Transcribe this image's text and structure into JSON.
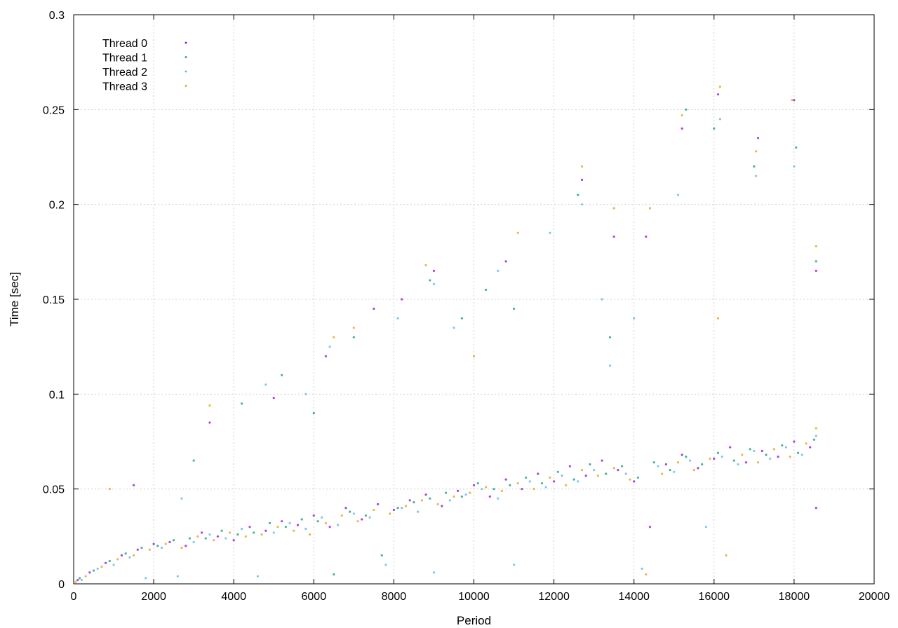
{
  "chart_data": {
    "type": "scatter",
    "title": "",
    "xlabel": "Period",
    "ylabel": "Time [sec]",
    "xlim": [
      0,
      20000
    ],
    "ylim": [
      0,
      0.3
    ],
    "x_ticks": [
      0,
      2000,
      4000,
      6000,
      8000,
      10000,
      12000,
      14000,
      16000,
      18000,
      20000
    ],
    "y_ticks": [
      0,
      0.05,
      0.1,
      0.15,
      0.2,
      0.25,
      0.3
    ],
    "x_tick_labels": [
      "0",
      "2000",
      "4000",
      "6000",
      "8000",
      "10000",
      "12000",
      "14000",
      "16000",
      "18000",
      "20000"
    ],
    "y_tick_labels": [
      "0",
      "0.05",
      "0.1",
      "0.15",
      "0.2",
      "0.25",
      "0.3"
    ],
    "grid": true,
    "legend_position": "top-left",
    "series": [
      {
        "name": "Thread 0",
        "color": "#9400d3",
        "points": [
          [
            100,
            0.002
          ],
          [
            400,
            0.006
          ],
          [
            800,
            0.011
          ],
          [
            1200,
            0.015
          ],
          [
            1600,
            0.018
          ],
          [
            2000,
            0.021
          ],
          [
            2400,
            0.022
          ],
          [
            2800,
            0.02
          ],
          [
            3200,
            0.027
          ],
          [
            3600,
            0.025
          ],
          [
            4000,
            0.023
          ],
          [
            4400,
            0.03
          ],
          [
            4800,
            0.028
          ],
          [
            5200,
            0.033
          ],
          [
            5600,
            0.031
          ],
          [
            6000,
            0.036
          ],
          [
            6400,
            0.03
          ],
          [
            6800,
            0.04
          ],
          [
            7200,
            0.034
          ],
          [
            7600,
            0.042
          ],
          [
            8000,
            0.039
          ],
          [
            8400,
            0.044
          ],
          [
            8800,
            0.047
          ],
          [
            9200,
            0.041
          ],
          [
            9600,
            0.049
          ],
          [
            10000,
            0.052
          ],
          [
            10400,
            0.046
          ],
          [
            10800,
            0.055
          ],
          [
            11200,
            0.05
          ],
          [
            11600,
            0.058
          ],
          [
            12000,
            0.054
          ],
          [
            12400,
            0.062
          ],
          [
            12800,
            0.057
          ],
          [
            13200,
            0.065
          ],
          [
            13600,
            0.06
          ],
          [
            14000,
            0.054
          ],
          [
            14400,
            0.03
          ],
          [
            14800,
            0.063
          ],
          [
            15200,
            0.068
          ],
          [
            15600,
            0.061
          ],
          [
            16000,
            0.066
          ],
          [
            16400,
            0.072
          ],
          [
            16800,
            0.064
          ],
          [
            17200,
            0.07
          ],
          [
            17600,
            0.067
          ],
          [
            18000,
            0.075
          ],
          [
            18400,
            0.072
          ],
          [
            18550,
            0.04
          ],
          [
            1500,
            0.052
          ],
          [
            5000,
            0.098
          ],
          [
            6300,
            0.12
          ],
          [
            8200,
            0.15
          ],
          [
            9000,
            0.165
          ],
          [
            10800,
            0.17
          ],
          [
            12700,
            0.213
          ],
          [
            13500,
            0.183
          ],
          [
            14300,
            0.183
          ],
          [
            15200,
            0.24
          ],
          [
            16100,
            0.258
          ],
          [
            17100,
            0.235
          ],
          [
            18000,
            0.255
          ],
          [
            18550,
            0.165
          ],
          [
            3400,
            0.085
          ],
          [
            7500,
            0.145
          ]
        ]
      },
      {
        "name": "Thread 1",
        "color": "#009e73",
        "points": [
          [
            150,
            0.003
          ],
          [
            500,
            0.007
          ],
          [
            900,
            0.012
          ],
          [
            1300,
            0.016
          ],
          [
            1700,
            0.019
          ],
          [
            2100,
            0.02
          ],
          [
            2500,
            0.023
          ],
          [
            2900,
            0.024
          ],
          [
            3300,
            0.024
          ],
          [
            3700,
            0.028
          ],
          [
            4100,
            0.026
          ],
          [
            4500,
            0.027
          ],
          [
            4900,
            0.032
          ],
          [
            5300,
            0.03
          ],
          [
            5700,
            0.034
          ],
          [
            6100,
            0.033
          ],
          [
            6500,
            0.005
          ],
          [
            6900,
            0.038
          ],
          [
            7300,
            0.036
          ],
          [
            7700,
            0.015
          ],
          [
            8100,
            0.04
          ],
          [
            8500,
            0.043
          ],
          [
            8900,
            0.045
          ],
          [
            9300,
            0.048
          ],
          [
            9700,
            0.046
          ],
          [
            10100,
            0.053
          ],
          [
            10500,
            0.05
          ],
          [
            10900,
            0.052
          ],
          [
            11300,
            0.056
          ],
          [
            11700,
            0.053
          ],
          [
            12100,
            0.059
          ],
          [
            12500,
            0.055
          ],
          [
            12900,
            0.063
          ],
          [
            13300,
            0.058
          ],
          [
            13700,
            0.062
          ],
          [
            14100,
            0.056
          ],
          [
            14500,
            0.064
          ],
          [
            14900,
            0.06
          ],
          [
            15300,
            0.067
          ],
          [
            15700,
            0.063
          ],
          [
            16100,
            0.069
          ],
          [
            16500,
            0.065
          ],
          [
            16900,
            0.071
          ],
          [
            17300,
            0.068
          ],
          [
            17700,
            0.073
          ],
          [
            18100,
            0.069
          ],
          [
            18500,
            0.076
          ],
          [
            3000,
            0.065
          ],
          [
            5200,
            0.11
          ],
          [
            7000,
            0.13
          ],
          [
            8900,
            0.16
          ],
          [
            9700,
            0.14
          ],
          [
            10300,
            0.155
          ],
          [
            11000,
            0.145
          ],
          [
            12600,
            0.205
          ],
          [
            13400,
            0.13
          ],
          [
            15300,
            0.25
          ],
          [
            16000,
            0.24
          ],
          [
            17000,
            0.22
          ],
          [
            18050,
            0.23
          ],
          [
            18550,
            0.17
          ],
          [
            4200,
            0.095
          ],
          [
            6000,
            0.09
          ]
        ]
      },
      {
        "name": "Thread 2",
        "color": "#56b4e9",
        "points": [
          [
            200,
            0.002
          ],
          [
            600,
            0.008
          ],
          [
            1000,
            0.01
          ],
          [
            1400,
            0.014
          ],
          [
            1800,
            0.003
          ],
          [
            2200,
            0.019
          ],
          [
            2600,
            0.004
          ],
          [
            3000,
            0.022
          ],
          [
            3400,
            0.026
          ],
          [
            3800,
            0.024
          ],
          [
            4200,
            0.029
          ],
          [
            4600,
            0.004
          ],
          [
            5000,
            0.027
          ],
          [
            5400,
            0.032
          ],
          [
            5800,
            0.029
          ],
          [
            6200,
            0.035
          ],
          [
            6600,
            0.031
          ],
          [
            7000,
            0.037
          ],
          [
            7400,
            0.035
          ],
          [
            7800,
            0.01
          ],
          [
            8200,
            0.04
          ],
          [
            8600,
            0.038
          ],
          [
            9000,
            0.006
          ],
          [
            9400,
            0.044
          ],
          [
            9800,
            0.047
          ],
          [
            10200,
            0.05
          ],
          [
            10600,
            0.045
          ],
          [
            11000,
            0.01
          ],
          [
            11400,
            0.054
          ],
          [
            11800,
            0.051
          ],
          [
            12200,
            0.057
          ],
          [
            12600,
            0.054
          ],
          [
            13000,
            0.06
          ],
          [
            13400,
            0.115
          ],
          [
            13800,
            0.058
          ],
          [
            14200,
            0.008
          ],
          [
            14600,
            0.062
          ],
          [
            15000,
            0.059
          ],
          [
            15400,
            0.065
          ],
          [
            15800,
            0.03
          ],
          [
            16200,
            0.067
          ],
          [
            16600,
            0.063
          ],
          [
            17000,
            0.07
          ],
          [
            17400,
            0.066
          ],
          [
            17800,
            0.072
          ],
          [
            18200,
            0.068
          ],
          [
            18550,
            0.078
          ],
          [
            2700,
            0.045
          ],
          [
            4800,
            0.105
          ],
          [
            6400,
            0.125
          ],
          [
            8100,
            0.14
          ],
          [
            9000,
            0.158
          ],
          [
            10600,
            0.165
          ],
          [
            11900,
            0.185
          ],
          [
            13200,
            0.15
          ],
          [
            14000,
            0.14
          ],
          [
            15100,
            0.205
          ],
          [
            16150,
            0.245
          ],
          [
            17050,
            0.215
          ],
          [
            18000,
            0.22
          ],
          [
            12700,
            0.2
          ],
          [
            9500,
            0.135
          ],
          [
            5800,
            0.1
          ]
        ]
      },
      {
        "name": "Thread 3",
        "color": "#e69f00",
        "points": [
          [
            50,
            0.001
          ],
          [
            300,
            0.004
          ],
          [
            700,
            0.009
          ],
          [
            1100,
            0.013
          ],
          [
            1500,
            0.015
          ],
          [
            1900,
            0.018
          ],
          [
            2300,
            0.021
          ],
          [
            2700,
            0.019
          ],
          [
            3100,
            0.025
          ],
          [
            3500,
            0.023
          ],
          [
            3900,
            0.027
          ],
          [
            4300,
            0.025
          ],
          [
            4700,
            0.026
          ],
          [
            5100,
            0.03
          ],
          [
            5500,
            0.028
          ],
          [
            5900,
            0.026
          ],
          [
            6300,
            0.032
          ],
          [
            6700,
            0.036
          ],
          [
            7100,
            0.033
          ],
          [
            7500,
            0.039
          ],
          [
            7900,
            0.037
          ],
          [
            8300,
            0.041
          ],
          [
            8700,
            0.044
          ],
          [
            9100,
            0.042
          ],
          [
            9500,
            0.046
          ],
          [
            9900,
            0.048
          ],
          [
            10300,
            0.051
          ],
          [
            10700,
            0.049
          ],
          [
            11100,
            0.053
          ],
          [
            11500,
            0.05
          ],
          [
            11900,
            0.056
          ],
          [
            12300,
            0.052
          ],
          [
            12700,
            0.06
          ],
          [
            13100,
            0.057
          ],
          [
            13500,
            0.061
          ],
          [
            13900,
            0.055
          ],
          [
            14300,
            0.005
          ],
          [
            14700,
            0.058
          ],
          [
            15100,
            0.064
          ],
          [
            15500,
            0.06
          ],
          [
            15900,
            0.066
          ],
          [
            16300,
            0.015
          ],
          [
            16700,
            0.068
          ],
          [
            17100,
            0.064
          ],
          [
            17500,
            0.071
          ],
          [
            17900,
            0.067
          ],
          [
            18300,
            0.074
          ],
          [
            18550,
            0.082
          ],
          [
            900,
            0.05
          ],
          [
            3400,
            0.094
          ],
          [
            6500,
            0.13
          ],
          [
            7000,
            0.135
          ],
          [
            8800,
            0.168
          ],
          [
            11100,
            0.185
          ],
          [
            12700,
            0.22
          ],
          [
            13500,
            0.198
          ],
          [
            14400,
            0.198
          ],
          [
            15200,
            0.247
          ],
          [
            16150,
            0.262
          ],
          [
            17050,
            0.228
          ],
          [
            17950,
            0.255
          ],
          [
            18550,
            0.178
          ],
          [
            10000,
            0.12
          ],
          [
            16100,
            0.14
          ]
        ]
      }
    ]
  }
}
